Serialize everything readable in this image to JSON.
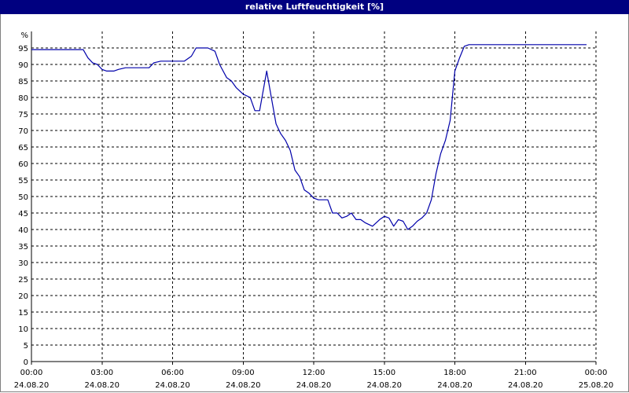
{
  "window": {
    "title": "relative Luftfeuchtigkeit [%]"
  },
  "chart_data": {
    "type": "line",
    "title": "relative Luftfeuchtigkeit [%]",
    "ylabel": "%",
    "xlabel": "",
    "ylim": [
      0,
      100
    ],
    "yticks": [
      0,
      5,
      10,
      15,
      20,
      25,
      30,
      35,
      40,
      45,
      50,
      55,
      60,
      65,
      70,
      75,
      80,
      85,
      90,
      95
    ],
    "xlim_hours": [
      0,
      24
    ],
    "xticks": [
      {
        "time": "00:00",
        "date": "24.08.20"
      },
      {
        "time": "03:00",
        "date": "24.08.20"
      },
      {
        "time": "06:00",
        "date": "24.08.20"
      },
      {
        "time": "09:00",
        "date": "24.08.20"
      },
      {
        "time": "12:00",
        "date": "24.08.20"
      },
      {
        "time": "15:00",
        "date": "24.08.20"
      },
      {
        "time": "18:00",
        "date": "24.08.20"
      },
      {
        "time": "21:00",
        "date": "24.08.20"
      },
      {
        "time": "00:00",
        "date": "25.08.20"
      }
    ],
    "grid": true,
    "line_color": "#0000aa",
    "series": [
      {
        "x_hours": [
          0.0,
          2.2,
          2.4,
          2.6,
          2.8,
          3.0,
          3.2,
          3.5,
          3.7,
          4.0,
          4.5,
          5.0,
          5.2,
          5.5,
          6.0,
          6.5,
          6.8,
          7.0,
          7.2,
          7.5,
          7.8,
          8.0,
          8.3,
          8.5,
          8.7,
          9.0,
          9.3,
          9.5,
          9.7,
          10.0,
          10.2,
          10.4,
          10.6,
          10.8,
          11.0,
          11.2,
          11.4,
          11.6,
          11.8,
          12.0,
          12.2,
          12.4,
          12.6,
          12.8,
          13.0,
          13.2,
          13.4,
          13.6,
          13.8,
          14.0,
          14.2,
          14.5,
          14.8,
          15.0,
          15.2,
          15.4,
          15.6,
          15.8,
          16.0,
          16.2,
          16.4,
          16.6,
          16.8,
          17.0,
          17.2,
          17.4,
          17.6,
          17.8,
          18.0,
          18.2,
          18.4,
          18.6,
          18.8,
          19.0,
          19.2,
          19.5,
          20.0,
          21.0,
          22.0,
          23.0,
          23.6
        ],
        "y": [
          94.5,
          94.5,
          92,
          90.5,
          90,
          88.5,
          88,
          88,
          88.5,
          89,
          89,
          89,
          90.5,
          91,
          91,
          91,
          92.5,
          95,
          95,
          95,
          94,
          90,
          86,
          85,
          83,
          81,
          80,
          76,
          76,
          88,
          80,
          72,
          69,
          67,
          64,
          58,
          56,
          52,
          51,
          49.5,
          49,
          49,
          49,
          45,
          45,
          43.5,
          44,
          45,
          43,
          43,
          42,
          41,
          43,
          44,
          43.5,
          41,
          43,
          42.5,
          40,
          41,
          42.5,
          43.5,
          45,
          49,
          57,
          63,
          67,
          73,
          88,
          92,
          95.5,
          96,
          96,
          96,
          96,
          96,
          96,
          96,
          96,
          96,
          96
        ]
      }
    ]
  }
}
